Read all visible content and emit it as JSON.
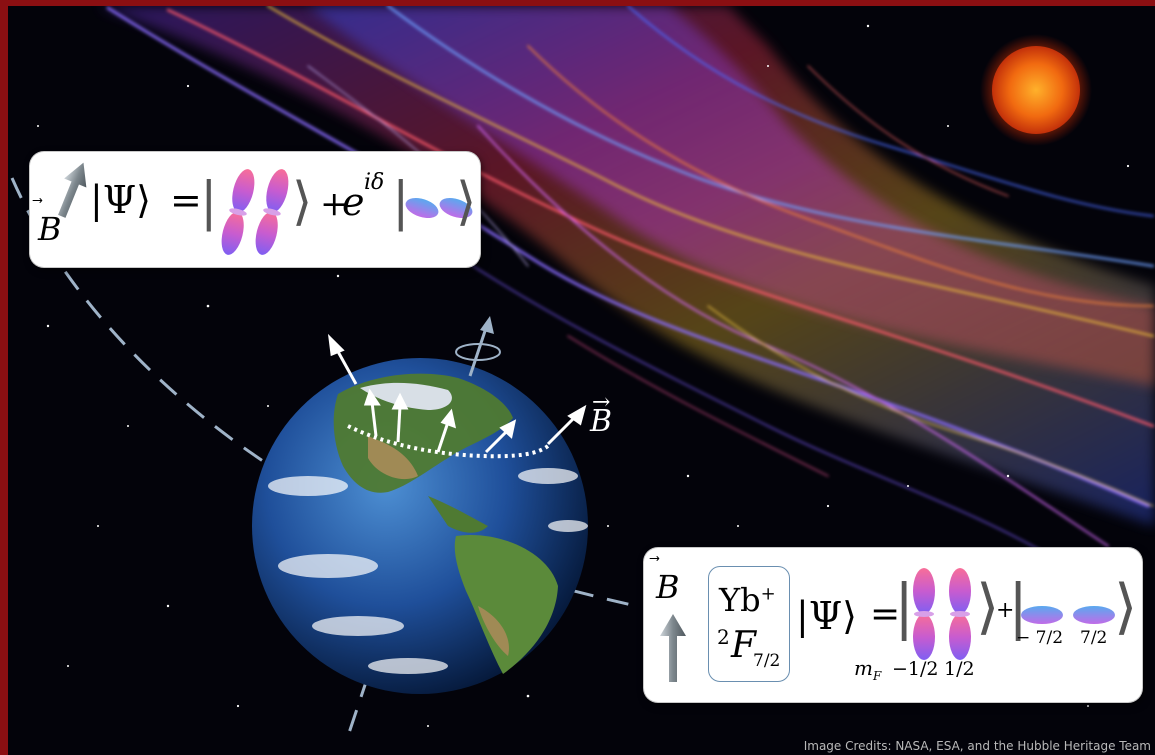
{
  "top_equation": {
    "b_symbol": "B",
    "vector_arrow": "⃗",
    "psi": "Ψ",
    "ket_left": "|",
    "ket_right": "⟩",
    "equals": "=",
    "plus": "+",
    "exp_base": "e",
    "exp_power": "iδ"
  },
  "bottom_equation": {
    "b_symbol": "B",
    "ion": "Yb",
    "ion_charge": "+",
    "term_prefix": "2",
    "term_letter": "F",
    "term_sub": "7/2",
    "psi": "Ψ",
    "equals": "=",
    "plus": "+",
    "mf_label": "m",
    "mf_sub": "F",
    "mf_values": [
      "−1/2",
      "1/2",
      "− 7/2",
      "7/2"
    ]
  },
  "earth_label": {
    "b_symbol": "B",
    "vector_arrow": "→"
  },
  "credits": "Image Credits: NASA, ESA, and the Hubble Heritage Team",
  "colors": {
    "frame": "#8b0f12",
    "orbital_top": "#f25f8f",
    "orbital_bottom": "#7d5ef0",
    "disc_top": "#5aa9ef",
    "disc_bottom": "#c06ce8",
    "arrow_grey": "#8a9398"
  }
}
